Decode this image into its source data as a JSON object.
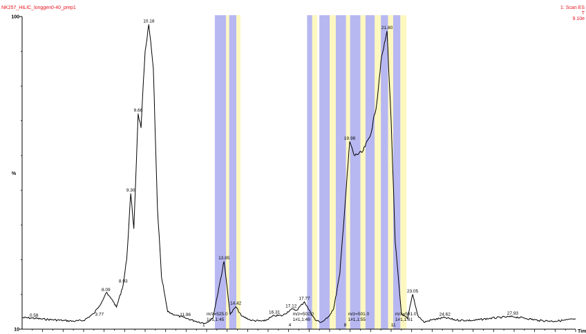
{
  "header": {
    "title": "NK257_HILIC_longgen0-40_prep1",
    "scan_label": "1: Scan ES",
    "scan_tic": "T",
    "scan_intensity": "9.10e"
  },
  "colors": {
    "trace": "#000000",
    "header_text": "#e8141e",
    "band_blue": "#b7b7f1",
    "band_yellow": "#fdf8c0"
  },
  "chart_data": {
    "type": "line",
    "title": "NK257_HILIC_longgen0-40_prep1",
    "xlabel": "Time",
    "ylabel": "%",
    "xlim": [
      4.0,
      31.0
    ],
    "ylim": [
      10,
      100
    ],
    "grid": false,
    "y_ticks": [
      {
        "value": 10,
        "label": "10"
      },
      {
        "value": 100,
        "label": "100"
      }
    ],
    "series": [
      {
        "values_xy": [
          [
            4.0,
            13.3
          ],
          [
            4.5,
            13.2
          ],
          [
            5.0,
            12.9
          ],
          [
            5.5,
            12.7
          ],
          [
            6.0,
            12.5
          ],
          [
            6.5,
            12.3
          ],
          [
            7.0,
            12.5
          ],
          [
            7.5,
            14.5
          ],
          [
            7.9,
            18.0
          ],
          [
            8.09,
            20.4
          ],
          [
            8.4,
            18.5
          ],
          [
            8.6,
            16.3
          ],
          [
            8.93,
            22.8
          ],
          [
            9.1,
            30.0
          ],
          [
            9.3,
            49.0
          ],
          [
            9.45,
            39.0
          ],
          [
            9.66,
            72.0
          ],
          [
            9.8,
            68.0
          ],
          [
            10.0,
            90.0
          ],
          [
            10.18,
            97.7
          ],
          [
            10.4,
            85.0
          ],
          [
            10.6,
            45.0
          ],
          [
            10.8,
            25.0
          ],
          [
            11.1,
            15.0
          ],
          [
            11.5,
            14.0
          ],
          [
            11.96,
            13.2
          ],
          [
            12.4,
            12.4
          ],
          [
            12.9,
            11.7
          ],
          [
            13.3,
            13.0
          ],
          [
            13.6,
            22.0
          ],
          [
            13.85,
            29.5
          ],
          [
            14.0,
            22.0
          ],
          [
            14.15,
            14.2
          ],
          [
            14.42,
            16.5
          ],
          [
            14.7,
            13.8
          ],
          [
            15.2,
            12.5
          ],
          [
            15.8,
            12.3
          ],
          [
            16.31,
            13.9
          ],
          [
            16.7,
            13.9
          ],
          [
            17.12,
            15.7
          ],
          [
            17.4,
            15.5
          ],
          [
            17.77,
            17.9
          ],
          [
            18.0,
            15.5
          ],
          [
            18.3,
            12.6
          ],
          [
            18.6,
            12.0
          ],
          [
            18.9,
            13.2
          ],
          [
            19.2,
            16.0
          ],
          [
            19.5,
            26.0
          ],
          [
            19.98,
            64.0
          ],
          [
            20.2,
            60.0
          ],
          [
            20.6,
            61.0
          ],
          [
            21.0,
            66.0
          ],
          [
            21.3,
            75.0
          ],
          [
            21.5,
            87.0
          ],
          [
            21.8,
            95.8
          ],
          [
            22.0,
            70.0
          ],
          [
            22.2,
            35.0
          ],
          [
            22.5,
            14.5
          ],
          [
            22.8,
            13.0
          ],
          [
            23.05,
            20.0
          ],
          [
            23.3,
            14.0
          ],
          [
            23.6,
            12.0
          ],
          [
            24.0,
            12.7
          ],
          [
            24.62,
            13.3
          ],
          [
            25.2,
            12.6
          ],
          [
            26.0,
            12.5
          ],
          [
            26.8,
            13.1
          ],
          [
            27.4,
            13.4
          ],
          [
            27.93,
            13.6
          ],
          [
            28.5,
            13.2
          ],
          [
            29.2,
            12.5
          ],
          [
            30.0,
            12.3
          ],
          [
            30.5,
            12.6
          ],
          [
            31.0,
            12.9
          ]
        ]
      }
    ],
    "peak_labels": [
      {
        "x": 4.58,
        "y": 13.0,
        "label": "0.58"
      },
      {
        "x": 7.77,
        "y": 13.3,
        "label": "3.77"
      },
      {
        "x": 8.09,
        "y": 20.4,
        "label": "8.09"
      },
      {
        "x": 8.93,
        "y": 22.8,
        "label": "8.93"
      },
      {
        "x": 9.3,
        "y": 49.0,
        "label": "9.30"
      },
      {
        "x": 9.66,
        "y": 72.0,
        "label": "9.66"
      },
      {
        "x": 10.18,
        "y": 97.7,
        "label": "10.18"
      },
      {
        "x": 11.96,
        "y": 13.2,
        "label": "11.96"
      },
      {
        "x": 13.85,
        "y": 29.5,
        "label": "13.85"
      },
      {
        "x": 14.42,
        "y": 16.5,
        "label": "14.42"
      },
      {
        "x": 16.31,
        "y": 13.9,
        "label": "16.31"
      },
      {
        "x": 17.12,
        "y": 15.7,
        "label": "17.12"
      },
      {
        "x": 17.77,
        "y": 17.9,
        "label": "17.77"
      },
      {
        "x": 19.98,
        "y": 64.0,
        "label": "19.98"
      },
      {
        "x": 21.8,
        "y": 95.8,
        "label": "21.80"
      },
      {
        "x": 23.05,
        "y": 20.0,
        "label": "23.05"
      },
      {
        "x": 24.62,
        "y": 13.3,
        "label": "24.62"
      },
      {
        "x": 27.93,
        "y": 13.6,
        "label": "27.93"
      }
    ],
    "annotations": [
      {
        "x": 13.0,
        "lines": [
          "m/z=525.0",
          "1#1,1:45",
          "1"
        ]
      },
      {
        "x": 17.2,
        "lines": [
          "m/z=502.0",
          "1#1,1:49",
          "4"
        ]
      },
      {
        "x": 19.9,
        "lines": [
          "m/z=501.0",
          "1#1,1:55",
          "8"
        ]
      },
      {
        "x": 22.2,
        "lines": [
          "m/z=501.0",
          "1#1,1:61",
          "11"
        ]
      }
    ],
    "bands": [
      {
        "x0": 13.4,
        "x1": 13.95,
        "color": "blue"
      },
      {
        "x0": 13.95,
        "x1": 14.1,
        "color": "yellow"
      },
      {
        "x0": 14.1,
        "x1": 14.45,
        "color": "blue"
      },
      {
        "x0": 14.45,
        "x1": 14.65,
        "color": "yellow"
      },
      {
        "x0": 17.9,
        "x1": 18.15,
        "color": "blue"
      },
      {
        "x0": 18.15,
        "x1": 18.4,
        "color": "yellow"
      },
      {
        "x0": 18.5,
        "x1": 19.0,
        "color": "blue"
      },
      {
        "x0": 19.0,
        "x1": 19.3,
        "color": "yellow"
      },
      {
        "x0": 19.3,
        "x1": 19.8,
        "color": "blue"
      },
      {
        "x0": 19.8,
        "x1": 20.0,
        "color": "yellow"
      },
      {
        "x0": 20.0,
        "x1": 20.5,
        "color": "blue"
      },
      {
        "x0": 20.5,
        "x1": 20.75,
        "color": "yellow"
      },
      {
        "x0": 20.75,
        "x1": 21.2,
        "color": "blue"
      },
      {
        "x0": 21.2,
        "x1": 21.5,
        "color": "yellow"
      },
      {
        "x0": 21.5,
        "x1": 21.85,
        "color": "blue"
      },
      {
        "x0": 21.85,
        "x1": 22.1,
        "color": "yellow"
      },
      {
        "x0": 22.1,
        "x1": 22.45,
        "color": "blue"
      },
      {
        "x0": 22.45,
        "x1": 22.75,
        "color": "yellow"
      }
    ]
  }
}
